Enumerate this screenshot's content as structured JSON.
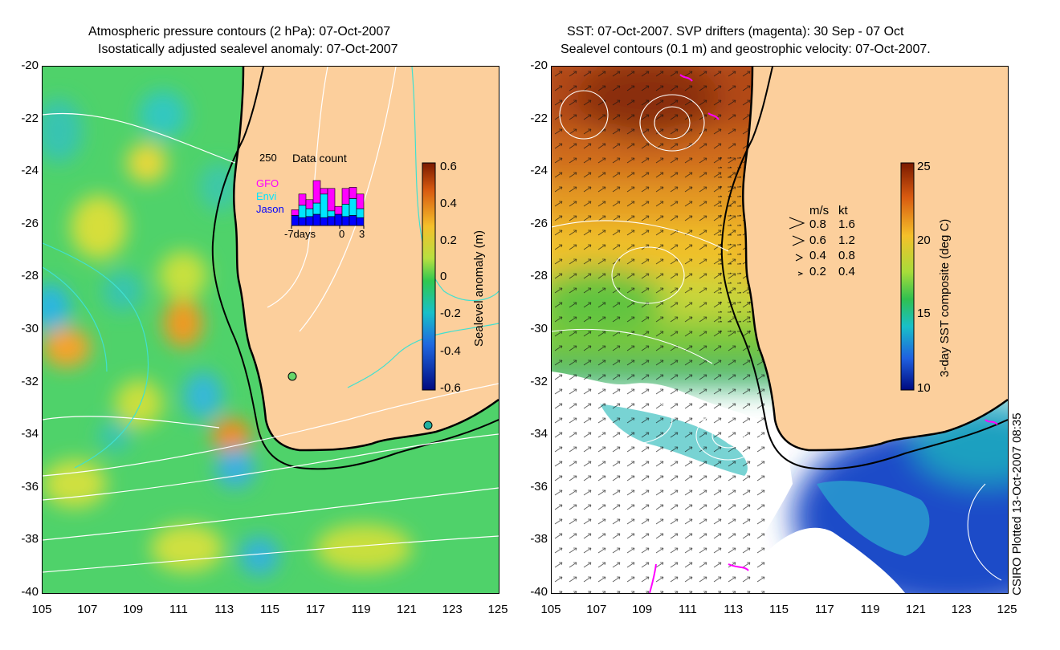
{
  "left_panel": {
    "title_line1": "Atmospheric pressure contours (2 hPa): 07-Oct-2007",
    "title_line2": "Isostatically adjusted sealevel anomaly: 07-Oct-2007",
    "colorbar": {
      "label": "Sealevel anomaly (m)",
      "ticks": [
        "0.6",
        "0.4",
        "0.2",
        "0",
        "-0.2",
        "-0.4",
        "-0.6"
      ]
    },
    "inset": {
      "value_label": "250",
      "title": "Data count",
      "series": [
        {
          "name": "GFO",
          "color": "#ff00ff"
        },
        {
          "name": "Envi",
          "color": "#00e5ff"
        },
        {
          "name": "Jason",
          "color": "#0000ff"
        }
      ],
      "x_labels": [
        "-7days",
        "0",
        "3"
      ],
      "counts": [
        {
          "jason": 18,
          "envi": 0,
          "gfo": 10
        },
        {
          "jason": 14,
          "envi": 22,
          "gfo": 20
        },
        {
          "jason": 16,
          "envi": 14,
          "gfo": 16
        },
        {
          "jason": 20,
          "envi": 20,
          "gfo": 40
        },
        {
          "jason": 14,
          "envi": 42,
          "gfo": 10
        },
        {
          "jason": 16,
          "envi": 10,
          "gfo": 40
        },
        {
          "jason": 20,
          "envi": 0,
          "gfo": 14
        },
        {
          "jason": 16,
          "envi": 22,
          "gfo": 28
        },
        {
          "jason": 18,
          "envi": 30,
          "gfo": 20
        },
        {
          "jason": 14,
          "envi": 16,
          "gfo": 26
        }
      ]
    }
  },
  "right_panel": {
    "title_line1": "SST: 07-Oct-2007. SVP drifters (magenta): 30 Sep - 07 Oct",
    "title_line2": "Sealevel contours (0.1 m) and geostrophic velocity: 07-Oct-2007.",
    "colorbar": {
      "label": "3-day SST composite (deg C)",
      "ticks": [
        "25",
        "20",
        "15",
        "10"
      ]
    },
    "velocity_legend": {
      "header_ms": "m/s",
      "header_kt": "kt",
      "rows": [
        {
          "ms": "0.8",
          "kt": "1.6"
        },
        {
          "ms": "0.6",
          "kt": "1.2"
        },
        {
          "ms": "0.4",
          "kt": "0.8"
        },
        {
          "ms": "0.2",
          "kt": "0.4"
        }
      ]
    }
  },
  "axes": {
    "y_ticks": [
      "-20",
      "-22",
      "-24",
      "-26",
      "-28",
      "-30",
      "-32",
      "-34",
      "-36",
      "-38",
      "-40"
    ],
    "x_ticks": [
      "105",
      "107",
      "109",
      "111",
      "113",
      "115",
      "117",
      "119",
      "121",
      "123",
      "125"
    ]
  },
  "credit": "CSIRO Plotted 13-Oct-2007 08:35",
  "colors": {
    "land": "#fccf9c",
    "coast": "#000000",
    "pressure_contour": "#ffffff",
    "bathy_contour": "#40e0d0",
    "drifter": "#ff00ff"
  }
}
